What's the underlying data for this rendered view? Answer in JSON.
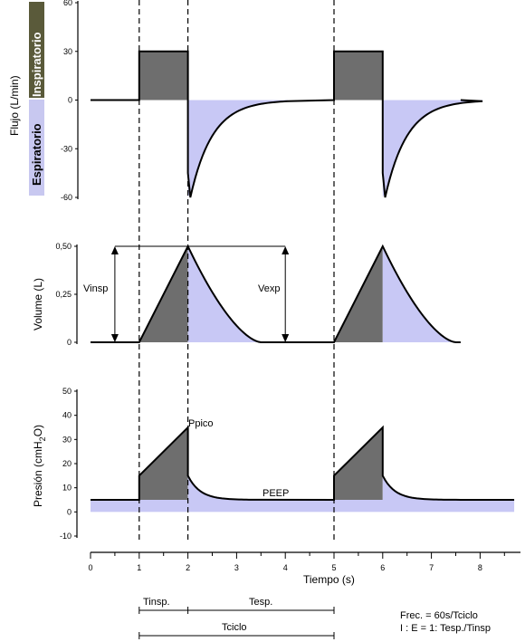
{
  "chart_data": [
    {
      "id": "flow",
      "type": "line",
      "ylabel": "Flujo (L/min)",
      "ylim": [
        -60,
        60
      ],
      "yticks": [
        "60",
        "30",
        "0",
        "-30",
        "-60"
      ],
      "ytick_values": [
        60,
        30,
        0,
        -30,
        -60
      ],
      "legend": {
        "inspiratorio": "Inspiratorio",
        "espiratorio": "Espiratorio",
        "insp_color": "#5a5a3a",
        "esp_color": "#c8c8f0"
      },
      "series": [
        {
          "x": [
            0,
            1,
            1,
            2,
            2,
            2.05,
            2.5,
            3,
            3.5,
            4,
            5,
            5,
            6,
            6,
            6.05,
            6.5,
            7,
            7.5,
            8
          ],
          "y": [
            0,
            0,
            30,
            30,
            0,
            -60,
            -35,
            -10,
            -2,
            0,
            0,
            30,
            30,
            0,
            -60,
            -35,
            -10,
            -2,
            0
          ]
        }
      ]
    },
    {
      "id": "volume",
      "type": "line",
      "ylabel": "Volume (L)",
      "ylim": [
        0,
        0.5
      ],
      "yticks": [
        "0,50",
        "0,25",
        "0"
      ],
      "ytick_values": [
        0.5,
        0.25,
        0
      ],
      "annotations": {
        "vinsp": "Vinsp",
        "vexp": "Vexp"
      },
      "series": [
        {
          "x": [
            0,
            1,
            2,
            2.5,
            3,
            3.5,
            4,
            5,
            6,
            6.5,
            7,
            7.5,
            8
          ],
          "y": [
            0,
            0,
            0.5,
            0.22,
            0.06,
            0,
            0,
            0,
            0.5,
            0.22,
            0.06,
            0,
            0
          ]
        }
      ]
    },
    {
      "id": "pressure",
      "type": "line",
      "ylabel_parts": [
        "Presión (cmH",
        "2",
        "O)"
      ],
      "ylim": [
        -10,
        50
      ],
      "yticks": [
        "50",
        "40",
        "30",
        "20",
        "10",
        "0",
        "-10"
      ],
      "ytick_values": [
        50,
        40,
        30,
        20,
        10,
        0,
        -10
      ],
      "annotations": {
        "ppico": "Ppico",
        "peep": "PEEP"
      },
      "series": [
        {
          "x": [
            0,
            1,
            1,
            2,
            2.05,
            2.5,
            3,
            3.5,
            5,
            5,
            6,
            6.05,
            6.5,
            7,
            7.5,
            8
          ],
          "y": [
            5,
            5,
            15,
            35,
            15,
            8,
            5.5,
            5,
            5,
            15,
            35,
            15,
            8,
            5.5,
            5,
            5
          ]
        }
      ]
    }
  ],
  "x_axis": {
    "label": "Tiempo (s)",
    "ticks": [
      "0",
      "1",
      "2",
      "3",
      "4",
      "5",
      "6",
      "7",
      "8"
    ],
    "tick_values": [
      0,
      1,
      2,
      3,
      4,
      5,
      6,
      7,
      8
    ],
    "xlim": [
      0,
      8.7
    ]
  },
  "timing": {
    "tinsp": "Tinsp.",
    "tesp": "Tesp.",
    "tciclo": "Tciclo"
  },
  "formula": {
    "line1": "Frec. = 60s/Tciclo",
    "line2": "I : E = 1: Tesp./Tinsp"
  },
  "colors": {
    "insp_fill": "#6e6e6e",
    "esp_fill": "#c8c8f5"
  }
}
